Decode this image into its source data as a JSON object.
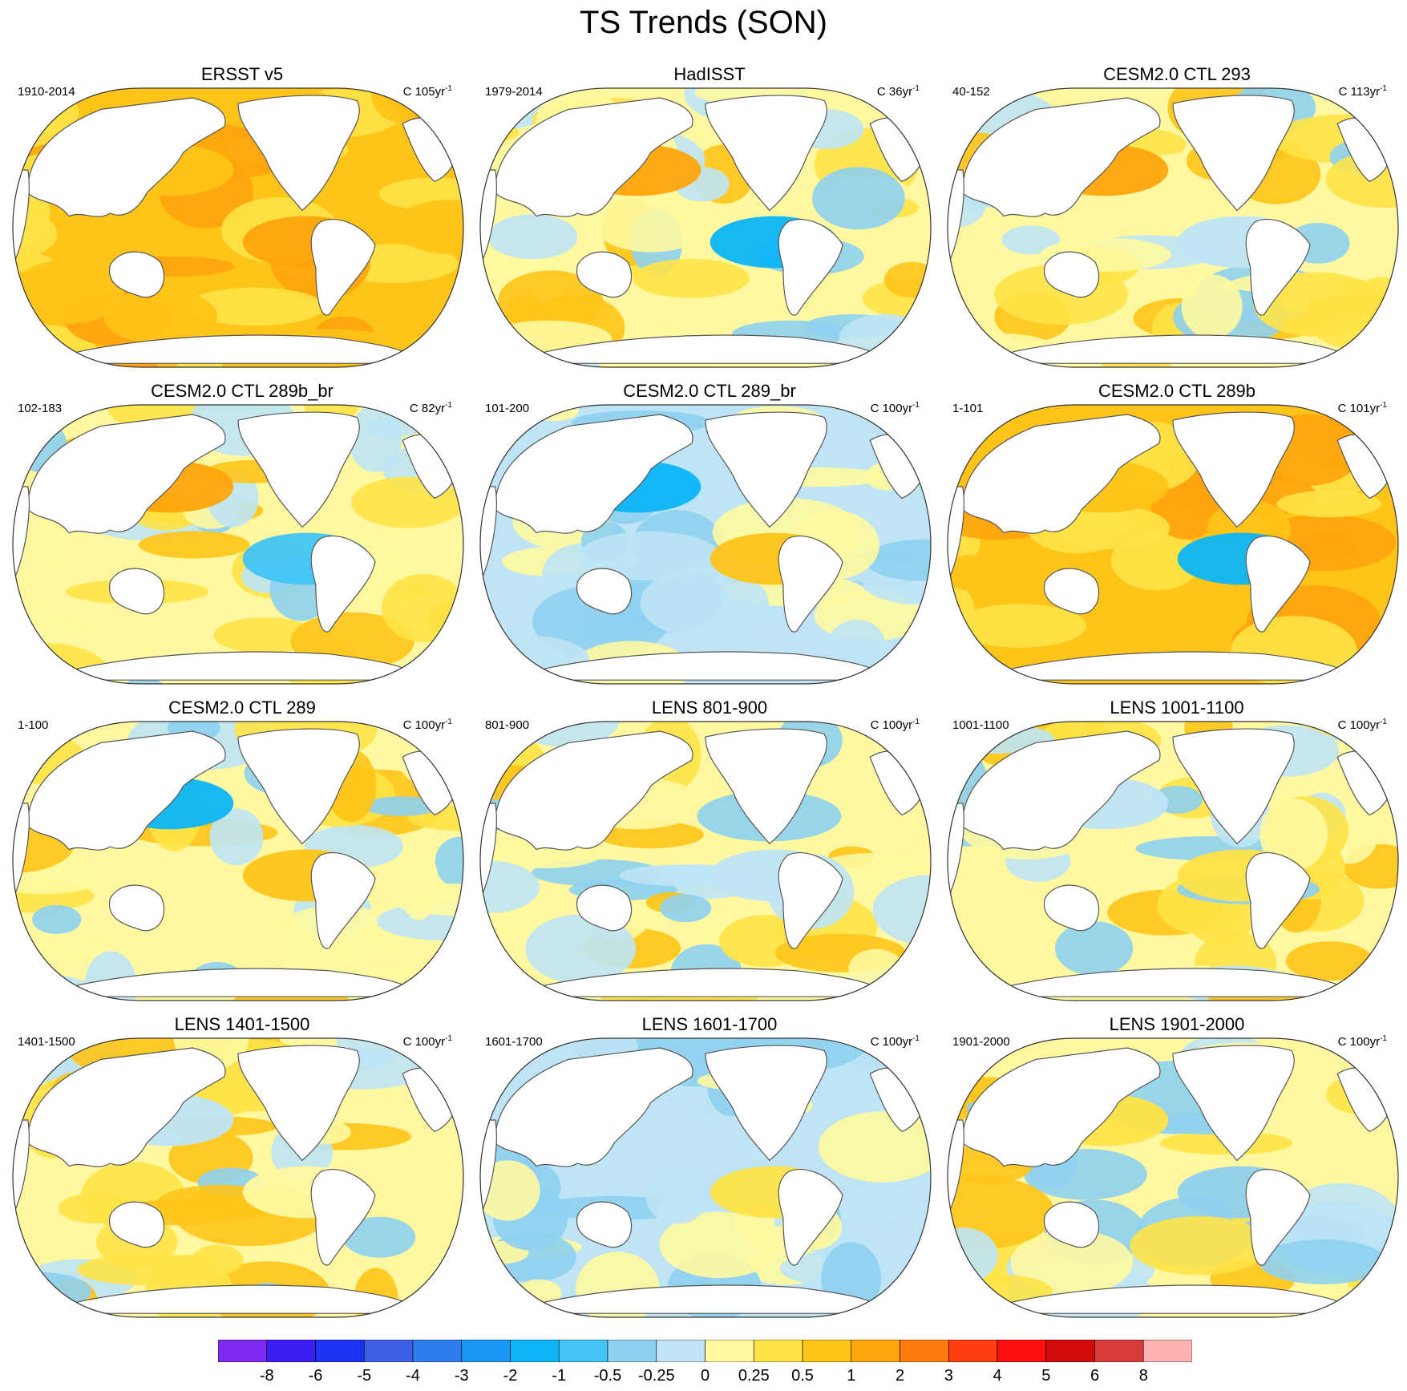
{
  "figure": {
    "title": "TS Trends (SON)"
  },
  "colors": {
    "land": "#ffffff",
    "coast": "#555555",
    "levels": [
      "#7f2af0",
      "#3a1cf5",
      "#1b34f2",
      "#3c5fe6",
      "#2f7ef0",
      "#1a97f5",
      "#0cb5f7",
      "#42c4f4",
      "#8ed0ef",
      "#bee4f5",
      "#fff8a0",
      "#ffe347",
      "#ffc418",
      "#ffa40c",
      "#ff7b0d",
      "#ff3e10",
      "#ff0e0e",
      "#d30b0b",
      "#d93a3a",
      "#ffb0b0"
    ]
  },
  "chart_data": {
    "type": "heatmap",
    "projection": "Robinson, Pacific-centred",
    "units": "C per period",
    "contour_levels": [
      "-8",
      "-6",
      "-5",
      "-4",
      "-3",
      "-2",
      "-1",
      "-0.5",
      "-0.25",
      "0",
      "0.25",
      "0.5",
      "1",
      "2",
      "3",
      "4",
      "5",
      "6",
      "8"
    ],
    "panels": [
      {
        "title": "ERSST v5",
        "period": "1910-2014",
        "units_prefix": "C 105yr",
        "units_exp": "-1",
        "dominant": "warm",
        "features": [
          {
            "desc": "widespread warming",
            "level": 12
          },
          {
            "desc": "Atlantic/Indian warm",
            "level": 13
          }
        ]
      },
      {
        "title": "HadISST",
        "period": "1979-2014",
        "units_prefix": "C 36yr",
        "units_exp": "-1",
        "dominant": "mixed",
        "features": [
          {
            "desc": "Atlantic strong warm",
            "level": 13
          },
          {
            "desc": "east Pacific cool",
            "level": 6
          }
        ]
      },
      {
        "title": "CESM2.0 CTL 293",
        "period": "40-152",
        "units_prefix": "C 113yr",
        "units_exp": "-1",
        "dominant": "mixed",
        "features": [
          {
            "desc": "North Atlantic warm",
            "level": 13
          },
          {
            "desc": "equatorial cool band",
            "level": 9
          }
        ]
      },
      {
        "title": "CESM2.0 CTL 289b_br",
        "period": "102-183",
        "units_prefix": "C 82yr",
        "units_exp": "-1",
        "dominant": "mixed",
        "features": [
          {
            "desc": "North Atlantic warm",
            "level": 13
          },
          {
            "desc": "south Pacific cool",
            "level": 7
          }
        ]
      },
      {
        "title": "CESM2.0 CTL 289_br",
        "period": "101-200",
        "units_prefix": "C 100yr",
        "units_exp": "-1",
        "dominant": "cool",
        "features": [
          {
            "desc": "central Pacific cool",
            "level": 6
          },
          {
            "desc": "Maritime continent warm",
            "level": 12
          }
        ]
      },
      {
        "title": "CESM2.0 CTL 289b",
        "period": "1-101",
        "units_prefix": "C 101yr",
        "units_exp": "-1",
        "dominant": "warm",
        "features": [
          {
            "desc": "east Pacific warm",
            "level": 12
          },
          {
            "desc": "North Atlantic cool",
            "level": 6
          }
        ]
      },
      {
        "title": "CESM2.0 CTL 289",
        "period": "1-100",
        "units_prefix": "C 100yr",
        "units_exp": "-1",
        "dominant": "mixed",
        "features": [
          {
            "desc": "North Pacific cool",
            "level": 6
          },
          {
            "desc": "South Atlantic warm",
            "level": 12
          }
        ]
      },
      {
        "title": "LENS 801-900",
        "period": "801-900",
        "units_prefix": "C 100yr",
        "units_exp": "-1",
        "dominant": "mixed",
        "features": [
          {
            "desc": "tropical Pacific weak warm",
            "level": 10
          },
          {
            "desc": "Indian Ocean cool",
            "level": 9
          }
        ]
      },
      {
        "title": "LENS 1001-1100",
        "period": "1001-1100",
        "units_prefix": "C 100yr",
        "units_exp": "-1",
        "dominant": "mixed",
        "features": [
          {
            "desc": "Pacific weak cool",
            "level": 9
          },
          {
            "desc": "southern oceans warm",
            "level": 11
          }
        ]
      },
      {
        "title": "LENS 1401-1500",
        "period": "1401-1500",
        "units_prefix": "C 100yr",
        "units_exp": "-1",
        "dominant": "mixed",
        "features": [
          {
            "desc": "Pacific weak cool",
            "level": 9
          },
          {
            "desc": "south Pacific warm",
            "level": 10
          }
        ]
      },
      {
        "title": "LENS 1601-1700",
        "period": "1601-1700",
        "units_prefix": "C 100yr",
        "units_exp": "-1",
        "dominant": "cool",
        "features": [
          {
            "desc": "broad weak cool",
            "level": 9
          },
          {
            "desc": "North Atlantic warm",
            "level": 11
          }
        ]
      },
      {
        "title": "LENS 1901-2000",
        "period": "1901-2000",
        "units_prefix": "C 100yr",
        "units_exp": "-1",
        "dominant": "mixed",
        "features": [
          {
            "desc": "tropical warm bands",
            "level": 11
          },
          {
            "desc": "equatorial cool",
            "level": 8
          }
        ]
      }
    ]
  }
}
